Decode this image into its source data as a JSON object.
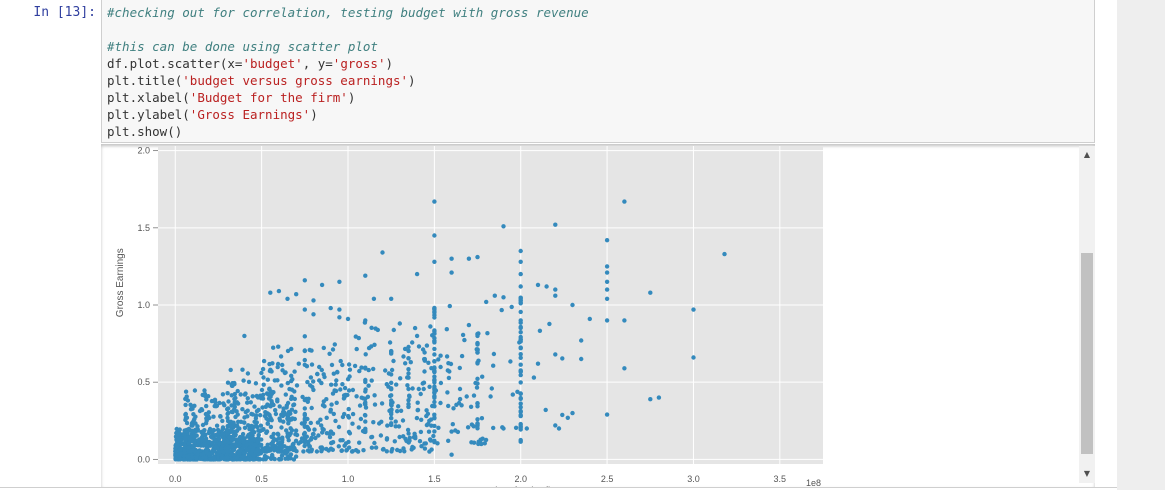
{
  "cell": {
    "prompt": "In [13]:",
    "code_lines": [
      [
        {
          "t": "comment",
          "v": "#checking out for correlation, testing budget with gross revenue"
        }
      ],
      [],
      [
        {
          "t": "comment",
          "v": "#this can be done using scatter plot"
        }
      ],
      [
        {
          "t": "plain",
          "v": "df.plot.scatter(x="
        },
        {
          "t": "string",
          "v": "'budget'"
        },
        {
          "t": "plain",
          "v": ", y="
        },
        {
          "t": "string",
          "v": "'gross'"
        },
        {
          "t": "plain",
          "v": ")"
        }
      ],
      [
        {
          "t": "plain",
          "v": "plt.title("
        },
        {
          "t": "string",
          "v": "'budget versus gross earnings'"
        },
        {
          "t": "plain",
          "v": ")"
        }
      ],
      [
        {
          "t": "plain",
          "v": "plt.xlabel("
        },
        {
          "t": "string",
          "v": "'Budget for the firm'"
        },
        {
          "t": "plain",
          "v": ")"
        }
      ],
      [
        {
          "t": "plain",
          "v": "plt.ylabel("
        },
        {
          "t": "string",
          "v": "'Gross Earnings'"
        },
        {
          "t": "plain",
          "v": ")"
        }
      ],
      [
        {
          "t": "plain",
          "v": "plt.show()"
        }
      ]
    ]
  },
  "scrollbar": {
    "up_icon": "triangle-up-icon",
    "down_icon": "triangle-down-icon",
    "up_glyph": "▲",
    "down_glyph": "▼"
  },
  "colors": {
    "point": "#348abd",
    "plot_bg": "#e5e5e5",
    "grid": "#ffffff",
    "comment": "#408080",
    "string": "#ba2121",
    "prompt": "#303f9f"
  },
  "chart_data": {
    "type": "scatter",
    "title": "",
    "xlabel": "Budget for the firm",
    "ylabel": "Gross Earnings",
    "x_offset_text": "1e8",
    "xlim": [
      -0.1,
      3.75
    ],
    "ylim": [
      -0.03,
      2.03
    ],
    "grid": true,
    "xticks": [
      0.0,
      0.5,
      1.0,
      1.5,
      2.0,
      2.5,
      3.0,
      3.5
    ],
    "xtick_labels": [
      "0.0",
      "0.5",
      "1.0",
      "1.5",
      "2.0",
      "2.5",
      "3.0",
      "3.5"
    ],
    "yticks": [
      0.0,
      0.5,
      1.0,
      1.5,
      2.0
    ],
    "ytick_labels": [
      "0.0",
      "0.5",
      "1.0",
      "1.5",
      "2.0"
    ],
    "units": "x in 1e8, y in 1e9 (top of axis cropped)",
    "points": [
      [
        2.45,
        2.06
      ],
      [
        3.22,
        2.05
      ],
      [
        1.5,
        1.67
      ],
      [
        2.6,
        1.67
      ],
      [
        1.9,
        1.51
      ],
      [
        2.2,
        1.52
      ],
      [
        1.5,
        1.45
      ],
      [
        2.5,
        1.42
      ],
      [
        1.2,
        1.34
      ],
      [
        2.0,
        1.35
      ],
      [
        3.18,
        1.33
      ],
      [
        1.6,
        1.3
      ],
      [
        1.7,
        1.3
      ],
      [
        1.75,
        1.31
      ],
      [
        1.5,
        1.28
      ],
      [
        2.0,
        1.28
      ],
      [
        2.5,
        1.25
      ],
      [
        1.6,
        1.21
      ],
      [
        2.0,
        1.2
      ],
      [
        2.5,
        1.21
      ],
      [
        1.4,
        1.2
      ],
      [
        1.1,
        1.19
      ],
      [
        0.75,
        1.16
      ],
      [
        0.95,
        1.15
      ],
      [
        0.85,
        1.13
      ],
      [
        2.5,
        1.15
      ],
      [
        2.1,
        1.13
      ],
      [
        2.15,
        1.12
      ],
      [
        2.0,
        1.12
      ],
      [
        2.2,
        1.1
      ],
      [
        2.5,
        1.1
      ],
      [
        0.6,
        1.09
      ],
      [
        0.55,
        1.08
      ],
      [
        0.7,
        1.07
      ],
      [
        2.75,
        1.08
      ],
      [
        2.2,
        1.06
      ],
      [
        1.85,
        1.06
      ],
      [
        1.9,
        1.05
      ],
      [
        0.65,
        1.04
      ],
      [
        1.15,
        1.04
      ],
      [
        1.25,
        1.04
      ],
      [
        0.8,
        1.03
      ],
      [
        2.5,
        1.04
      ],
      [
        1.8,
        1.02
      ],
      [
        2.3,
        1.0
      ],
      [
        0.9,
        0.98
      ],
      [
        0.95,
        0.97
      ],
      [
        3.0,
        0.97
      ],
      [
        1.5,
        0.96
      ],
      [
        0.75,
        0.97
      ],
      [
        0.8,
        0.94
      ],
      [
        0.95,
        0.92
      ],
      [
        1.0,
        0.91
      ],
      [
        1.1,
        0.9
      ],
      [
        2.4,
        0.91
      ],
      [
        2.5,
        0.9
      ],
      [
        2.6,
        0.9
      ],
      [
        1.3,
        0.88
      ],
      [
        1.7,
        0.87
      ],
      [
        0.4,
        0.8
      ],
      [
        1.4,
        0.8
      ],
      [
        2.35,
        0.77
      ],
      [
        2.0,
        0.72
      ],
      [
        2.2,
        0.68
      ],
      [
        3.0,
        0.66
      ],
      [
        2.1,
        0.62
      ],
      [
        2.6,
        0.59
      ],
      [
        2.35,
        0.65
      ],
      [
        2.8,
        0.4
      ],
      [
        2.75,
        0.39
      ],
      [
        2.5,
        0.29
      ],
      [
        2.2,
        0.22
      ],
      [
        2.3,
        0.3
      ],
      [
        1.6,
        0.18
      ],
      [
        1.5,
        0.12
      ],
      [
        1.6,
        0.03
      ],
      [
        2.0,
        0.28
      ]
    ],
    "clusters": [
      {
        "cx": [
          0.0,
          0.5
        ],
        "cy": [
          0.0,
          0.2
        ],
        "n": 520
      },
      {
        "cx": [
          0.05,
          0.7
        ],
        "cy": [
          0.0,
          0.45
        ],
        "n": 360
      },
      {
        "cx": [
          0.3,
          1.0
        ],
        "cy": [
          0.05,
          0.62
        ],
        "n": 230
      },
      {
        "cx": [
          0.5,
          1.5
        ],
        "cy": [
          0.05,
          0.75
        ],
        "n": 200
      },
      {
        "cx": [
          1.0,
          1.8
        ],
        "cy": [
          0.1,
          0.9
        ],
        "n": 110
      },
      {
        "cx": [
          1.5,
          2.3
        ],
        "cy": [
          0.2,
          1.0
        ],
        "n": 50
      }
    ],
    "columns": [
      {
        "x": 1.5,
        "y": [
          0.1,
          1.0
        ],
        "n": 45
      },
      {
        "x": 2.0,
        "y": [
          0.1,
          1.1
        ],
        "n": 40
      },
      {
        "x": 1.75,
        "y": [
          0.2,
          0.85
        ],
        "n": 22
      },
      {
        "x": 1.25,
        "y": [
          0.2,
          0.75
        ],
        "n": 18
      },
      {
        "x": 0.75,
        "y": [
          0.1,
          0.8
        ],
        "n": 18
      },
      {
        "x": 1.1,
        "y": [
          0.1,
          0.6
        ],
        "n": 14
      },
      {
        "x": 1.35,
        "y": [
          0.3,
          0.75
        ],
        "n": 12
      }
    ]
  }
}
